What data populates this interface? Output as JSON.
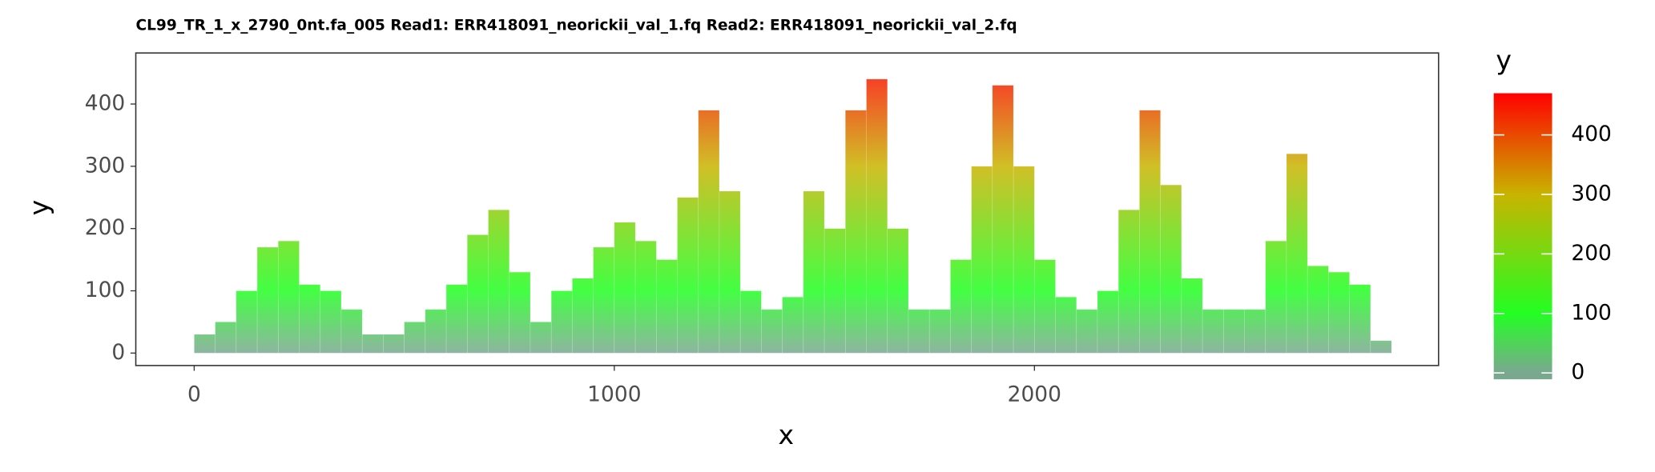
{
  "chart_data": {
    "type": "bar",
    "title": "CL99_TR_1_x_2790_0nt.fa_005 Read1: ERR418091_neorickii_val_1.fq Read2: ERR418091_neorickii_val_2.fq",
    "x_label": "x",
    "y_label": "y",
    "legend_title": "y",
    "x": [
      0,
      50,
      100,
      150,
      200,
      250,
      300,
      350,
      400,
      450,
      500,
      550,
      600,
      650,
      700,
      750,
      800,
      850,
      900,
      950,
      1000,
      1050,
      1100,
      1150,
      1200,
      1250,
      1300,
      1350,
      1400,
      1450,
      1500,
      1550,
      1600,
      1650,
      1700,
      1750,
      1800,
      1850,
      1900,
      1950,
      2000,
      2050,
      2100,
      2150,
      2200,
      2250,
      2300,
      2350,
      2400,
      2450,
      2500,
      2550,
      2600,
      2650,
      2700,
      2750,
      2800
    ],
    "bin_width": 50,
    "values": [
      30,
      50,
      100,
      170,
      180,
      110,
      100,
      70,
      30,
      30,
      50,
      70,
      110,
      190,
      230,
      130,
      50,
      100,
      120,
      170,
      210,
      180,
      150,
      250,
      390,
      260,
      100,
      70,
      90,
      260,
      200,
      390,
      440,
      200,
      70,
      70,
      150,
      300,
      430,
      300,
      150,
      90,
      70,
      100,
      230,
      390,
      270,
      120,
      70,
      70,
      70,
      180,
      320,
      140,
      130,
      110,
      20
    ],
    "xlim": [
      -139,
      2962
    ],
    "ylim": [
      -20,
      482
    ],
    "xticks": [
      0,
      1000,
      2000
    ],
    "yticks": [
      0,
      100,
      200,
      300,
      400
    ],
    "clim": [
      0,
      470
    ],
    "cticks": [
      0,
      100,
      200,
      300,
      400
    ],
    "color_scale": {
      "values": [
        0,
        100,
        300,
        470
      ],
      "colors": [
        "#7aa88f",
        "#22ff22",
        "#c8b400",
        "#ff0000"
      ]
    }
  }
}
